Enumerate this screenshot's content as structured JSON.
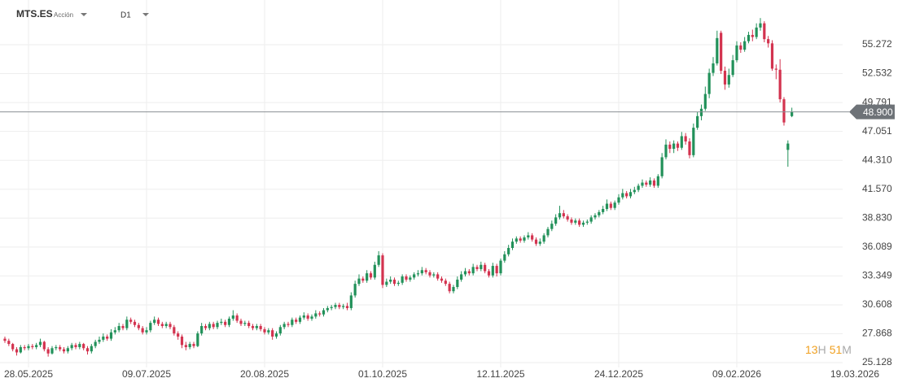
{
  "header": {
    "symbol": "MTS.ES",
    "kind": "Acción",
    "timeframe": "D1"
  },
  "countdown": {
    "hours": "13",
    "h": "H",
    "minutes": "51",
    "m": "M"
  },
  "chart_data": {
    "type": "candlestick",
    "up_color": "#22915a",
    "down_color": "#d3334f",
    "x": [
      -6,
      -5,
      -4,
      -3,
      -2,
      -1,
      0,
      1,
      2,
      3,
      4,
      5,
      6,
      7,
      8,
      9,
      10,
      11,
      12,
      13,
      14,
      15,
      16,
      17,
      18,
      19,
      20,
      21,
      22,
      23,
      24,
      25,
      26,
      27,
      28,
      29,
      30,
      31,
      32,
      33,
      34,
      35,
      36,
      37,
      38,
      39,
      40,
      41,
      42,
      43,
      44,
      45,
      46,
      47,
      48,
      49,
      50,
      51,
      52,
      53,
      54,
      55,
      56,
      57,
      58,
      59,
      60,
      61,
      62,
      63,
      64,
      65,
      66,
      67,
      68,
      69,
      70,
      71,
      72,
      73,
      74,
      75,
      76,
      77,
      78,
      79,
      80,
      81,
      82,
      83,
      84,
      85,
      86,
      87,
      88,
      89,
      90,
      91,
      92,
      93,
      94,
      95,
      96,
      97,
      98,
      99,
      100,
      101,
      102,
      103,
      104,
      105,
      106,
      107,
      108,
      109,
      110,
      111,
      112,
      113,
      114,
      115,
      116,
      117,
      118,
      119,
      120,
      121,
      122,
      123,
      124,
      125,
      126,
      127,
      128,
      129,
      130,
      131,
      132,
      133,
      134,
      135,
      136,
      137,
      138,
      139,
      140,
      141,
      142,
      143,
      144,
      145,
      146,
      147,
      148,
      149,
      150,
      151,
      152,
      153,
      154,
      155,
      156,
      157,
      158,
      159,
      160,
      161,
      162,
      163,
      164,
      165,
      166,
      167,
      168,
      169,
      170,
      171,
      172,
      173,
      174,
      175,
      176,
      177,
      178,
      179,
      180,
      181,
      182,
      183,
      184,
      185,
      186,
      187,
      188,
      189,
      190,
      191,
      192,
      193,
      194
    ],
    "open": [
      27.4,
      27.2,
      26.9,
      26.4,
      26.1,
      26.6,
      26.5,
      26.7,
      26.6,
      26.8,
      27.1,
      26.4,
      26.0,
      26.5,
      26.6,
      26.4,
      26.2,
      26.5,
      26.8,
      26.6,
      26.9,
      26.5,
      26.2,
      26.7,
      27.1,
      27.3,
      27.6,
      27.4,
      28.0,
      28.2,
      28.6,
      28.4,
      29.2,
      29.0,
      28.7,
      28.4,
      28.0,
      28.2,
      28.9,
      29.2,
      28.8,
      28.6,
      28.8,
      28.5,
      27.9,
      27.6,
      26.8,
      26.6,
      26.9,
      26.7,
      27.9,
      28.6,
      28.4,
      28.8,
      28.5,
      28.9,
      29.0,
      28.7,
      29.3,
      29.6,
      29.1,
      28.8,
      28.9,
      28.6,
      28.4,
      28.6,
      28.3,
      28.0,
      28.2,
      27.6,
      27.9,
      28.5,
      28.8,
      28.7,
      29.2,
      29.0,
      29.4,
      29.6,
      29.3,
      29.5,
      29.8,
      29.7,
      30.1,
      30.3,
      30.4,
      30.6,
      30.4,
      30.5,
      30.3,
      31.5,
      32.6,
      33.1,
      32.9,
      33.6,
      33.2,
      34.4,
      35.3,
      32.5,
      32.8,
      33.0,
      32.6,
      32.7,
      33.3,
      33.0,
      33.2,
      33.5,
      33.6,
      33.9,
      33.7,
      33.4,
      33.5,
      33.1,
      32.9,
      32.6,
      31.9,
      32.3,
      33.0,
      33.5,
      33.8,
      33.6,
      34.2,
      34.0,
      34.4,
      33.8,
      33.4,
      34.3,
      33.6,
      34.8,
      35.4,
      36.0,
      36.6,
      36.9,
      36.7,
      37.0,
      37.2,
      36.8,
      36.4,
      36.6,
      37.2,
      37.8,
      38.3,
      38.9,
      39.3,
      39.0,
      38.7,
      38.4,
      38.6,
      38.2,
      38.4,
      38.5,
      38.9,
      39.1,
      39.4,
      39.7,
      40.2,
      39.8,
      40.3,
      40.8,
      41.2,
      40.9,
      41.3,
      41.5,
      41.9,
      42.2,
      42.0,
      42.4,
      41.9,
      42.8,
      44.6,
      45.8,
      45.4,
      45.9,
      45.5,
      46.6,
      46.1,
      44.8,
      47.4,
      48.5,
      49.2,
      50.6,
      52.6,
      53.5,
      56.4,
      52.8,
      51.5,
      52.4,
      53.8,
      55.2,
      54.8,
      55.6,
      56.2,
      56.0,
      56.9,
      57.3,
      55.8,
      55.4,
      53.0,
      52.9,
      50.1,
      45.3,
      48.5
    ],
    "high": [
      27.6,
      27.4,
      27.0,
      26.6,
      26.8,
      26.8,
      26.9,
      26.9,
      27.0,
      27.4,
      27.2,
      26.6,
      26.7,
      26.8,
      26.8,
      26.6,
      26.7,
      27.0,
      27.0,
      27.1,
      27.0,
      26.7,
      26.9,
      27.3,
      27.6,
      27.9,
      27.8,
      28.3,
      28.5,
      28.9,
      28.8,
      29.5,
      29.4,
      29.2,
      28.9,
      28.6,
      28.5,
      29.1,
      29.5,
      29.4,
      29.0,
      29.0,
      29.0,
      28.7,
      28.1,
      27.8,
      27.1,
      27.1,
      27.1,
      28.1,
      28.9,
      28.8,
      29.0,
      29.0,
      29.1,
      29.3,
      29.2,
      29.5,
      30.1,
      29.8,
      29.3,
      29.1,
      29.1,
      28.8,
      28.8,
      28.8,
      28.5,
      28.4,
      28.4,
      28.1,
      28.7,
      29.0,
      29.0,
      29.4,
      29.4,
      29.6,
      29.9,
      29.8,
      29.7,
      30.1,
      30.0,
      30.3,
      30.5,
      30.6,
      30.8,
      30.8,
      30.7,
      30.8,
      31.8,
      32.9,
      33.5,
      33.3,
      33.9,
      33.8,
      34.7,
      35.7,
      35.5,
      33.1,
      33.3,
      33.2,
      32.9,
      33.5,
      33.5,
      33.4,
      33.7,
      33.9,
      34.2,
      34.1,
      33.9,
      33.7,
      33.7,
      33.3,
      33.1,
      32.8,
      32.5,
      33.3,
      33.8,
      34.1,
      34.0,
      34.5,
      34.4,
      34.7,
      34.6,
      34.0,
      34.6,
      34.5,
      35.0,
      35.7,
      36.3,
      36.9,
      37.1,
      37.1,
      37.2,
      37.5,
      37.4,
      37.0,
      36.9,
      37.4,
      38.0,
      38.6,
      39.2,
      40.0,
      39.6,
      39.2,
      38.9,
      38.8,
      38.8,
      38.6,
      38.7,
      39.1,
      39.3,
      39.6,
      40.0,
      40.6,
      40.4,
      40.5,
      41.1,
      41.6,
      41.4,
      41.6,
      41.8,
      42.1,
      42.5,
      42.4,
      42.7,
      42.6,
      43.0,
      45.0,
      46.3,
      46.1,
      46.2,
      46.1,
      47.0,
      46.9,
      46.4,
      47.8,
      48.9,
      49.6,
      51.3,
      53.0,
      54.1,
      56.6,
      56.6,
      53.2,
      53.0,
      54.3,
      55.6,
      55.5,
      56.0,
      56.5,
      56.7,
      57.3,
      57.8,
      57.5,
      56.1,
      55.7,
      53.4,
      53.9,
      50.3,
      46.2,
      49.3
    ],
    "low": [
      27.0,
      26.7,
      26.2,
      25.8,
      26.0,
      26.3,
      26.3,
      26.4,
      26.4,
      26.6,
      26.2,
      25.7,
      25.9,
      26.3,
      26.2,
      26.0,
      26.0,
      26.3,
      26.4,
      26.4,
      26.3,
      25.9,
      26.0,
      26.5,
      26.9,
      27.1,
      27.2,
      27.2,
      27.8,
      28.0,
      28.2,
      28.2,
      28.8,
      28.5,
      28.2,
      27.8,
      27.8,
      28.0,
      28.7,
      28.6,
      28.4,
      28.4,
      28.3,
      27.7,
      27.3,
      26.5,
      26.3,
      26.4,
      26.5,
      26.6,
      27.7,
      28.2,
      28.2,
      28.3,
      28.3,
      28.7,
      28.5,
      28.5,
      29.1,
      28.9,
      28.6,
      28.6,
      28.4,
      28.2,
      28.2,
      28.1,
      27.8,
      27.8,
      27.3,
      27.4,
      27.7,
      28.3,
      28.5,
      28.5,
      28.8,
      28.8,
      29.2,
      29.1,
      29.1,
      29.3,
      29.5,
      29.5,
      29.9,
      30.1,
      30.2,
      30.2,
      30.2,
      30.1,
      30.1,
      31.3,
      32.4,
      32.7,
      32.7,
      33.0,
      33.0,
      34.2,
      32.2,
      32.3,
      32.6,
      32.4,
      32.4,
      32.5,
      32.8,
      32.8,
      33.0,
      33.3,
      33.4,
      33.5,
      33.2,
      33.2,
      32.9,
      32.7,
      32.4,
      31.7,
      31.7,
      32.1,
      32.8,
      33.3,
      33.4,
      33.4,
      33.8,
      33.8,
      33.6,
      33.2,
      33.2,
      33.3,
      33.4,
      34.6,
      35.2,
      35.8,
      36.4,
      36.5,
      36.5,
      36.8,
      36.6,
      36.2,
      36.2,
      36.4,
      37.0,
      37.6,
      38.1,
      38.7,
      38.8,
      38.5,
      38.2,
      38.2,
      38.0,
      38.0,
      38.2,
      38.3,
      38.7,
      38.9,
      39.2,
      39.5,
      39.6,
      39.6,
      40.1,
      40.6,
      40.7,
      40.7,
      41.1,
      41.3,
      41.7,
      41.8,
      41.8,
      41.7,
      41.7,
      42.6,
      44.4,
      45.0,
      45.0,
      45.2,
      45.3,
      45.8,
      44.5,
      44.6,
      47.2,
      48.1,
      49.0,
      50.2,
      52.3,
      53.3,
      52.5,
      51.0,
      51.2,
      52.2,
      53.6,
      54.5,
      54.6,
      55.4,
      55.6,
      55.8,
      56.6,
      55.5,
      55.0,
      52.8,
      52.0,
      49.8,
      47.6,
      43.7,
      48.4
    ],
    "close": [
      27.2,
      26.9,
      26.4,
      26.1,
      26.6,
      26.5,
      26.7,
      26.6,
      26.8,
      27.1,
      26.4,
      26.0,
      26.5,
      26.6,
      26.4,
      26.2,
      26.5,
      26.8,
      26.6,
      26.9,
      26.5,
      26.2,
      26.7,
      27.1,
      27.3,
      27.6,
      27.4,
      28.0,
      28.2,
      28.6,
      28.4,
      29.2,
      29.0,
      28.7,
      28.4,
      28.0,
      28.2,
      28.9,
      29.2,
      28.8,
      28.6,
      28.8,
      28.5,
      27.9,
      27.6,
      26.8,
      26.6,
      26.9,
      26.7,
      27.9,
      28.6,
      28.4,
      28.8,
      28.5,
      28.9,
      29.0,
      28.7,
      29.3,
      29.6,
      29.1,
      28.8,
      28.9,
      28.6,
      28.4,
      28.6,
      28.3,
      28.0,
      28.2,
      27.6,
      27.9,
      28.5,
      28.8,
      28.7,
      29.2,
      29.0,
      29.4,
      29.6,
      29.3,
      29.5,
      29.8,
      29.7,
      30.1,
      30.3,
      30.4,
      30.6,
      30.4,
      30.5,
      30.3,
      31.5,
      32.6,
      33.1,
      32.9,
      33.6,
      33.2,
      34.4,
      35.3,
      32.5,
      32.8,
      33.0,
      32.6,
      32.7,
      33.3,
      33.0,
      33.2,
      33.5,
      33.6,
      33.9,
      33.7,
      33.4,
      33.5,
      33.1,
      32.9,
      32.6,
      31.9,
      32.3,
      33.0,
      33.5,
      33.8,
      33.6,
      34.2,
      34.0,
      34.4,
      33.8,
      33.4,
      34.3,
      33.6,
      34.8,
      35.4,
      36.0,
      36.6,
      36.9,
      36.7,
      37.0,
      37.2,
      36.8,
      36.4,
      36.6,
      37.2,
      37.8,
      38.3,
      38.9,
      39.3,
      39.0,
      38.7,
      38.4,
      38.6,
      38.2,
      38.4,
      38.5,
      38.9,
      39.1,
      39.4,
      39.7,
      40.2,
      39.8,
      40.3,
      40.8,
      41.2,
      40.9,
      41.3,
      41.5,
      41.9,
      42.2,
      42.0,
      42.4,
      41.9,
      42.8,
      44.6,
      45.8,
      45.4,
      45.9,
      45.5,
      46.6,
      46.1,
      44.8,
      47.4,
      48.5,
      49.2,
      50.6,
      52.6,
      53.5,
      55.9,
      52.8,
      51.5,
      52.4,
      53.8,
      55.2,
      54.8,
      55.6,
      56.2,
      56.0,
      56.9,
      57.3,
      55.8,
      55.4,
      53.0,
      52.9,
      50.1,
      47.9,
      45.9,
      48.9
    ],
    "xlim": [
      -7.24,
      206.9
    ],
    "xticks": [
      {
        "value": 0,
        "label": "28.05.2025"
      },
      {
        "value": 30,
        "label": "09.07.2025"
      },
      {
        "value": 60,
        "label": "20.08.2025"
      },
      {
        "value": 90,
        "label": "01.10.2025"
      },
      {
        "value": 120,
        "label": "12.11.2025"
      },
      {
        "value": 150,
        "label": "24.12.2025"
      },
      {
        "value": 180,
        "label": "09.02.2026"
      },
      {
        "value": 210,
        "label": "19.03.2026"
      }
    ],
    "ylim": [
      24.67,
      59.51
    ],
    "yticks": [
      55.272,
      52.532,
      49.791,
      47.051,
      {
        "value": 44.31,
        "label": "44.310"
      },
      {
        "value": 41.57,
        "label": "41.570"
      },
      {
        "value": 38.83,
        "label": "38.830"
      },
      36.089,
      33.349,
      30.608,
      27.868,
      25.128
    ],
    "price_line": {
      "value": 48.9,
      "label": "48.900"
    },
    "grid": true
  }
}
